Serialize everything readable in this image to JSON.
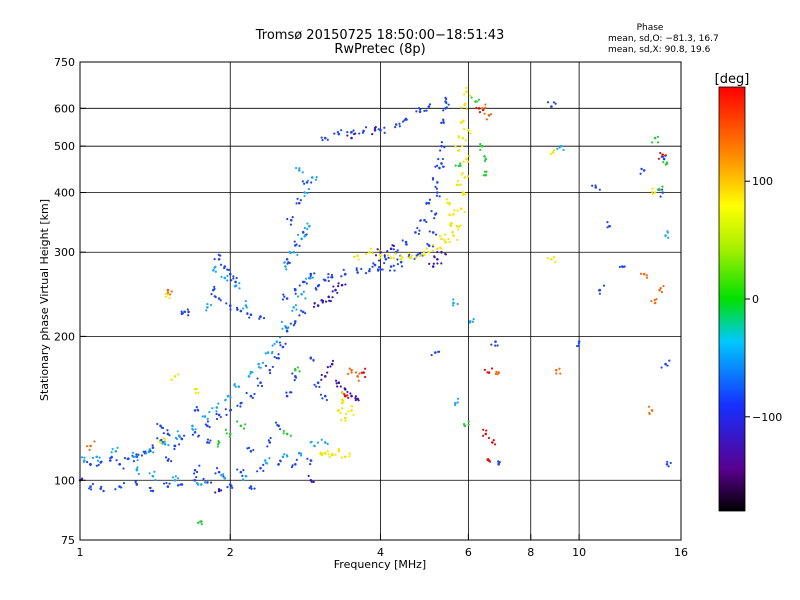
{
  "chart_data": {
    "type": "scatter",
    "title_line1": "Tromsø 20150725 18:50:00−18:51:43",
    "title_line2": "RwPretec (8p)",
    "xlabel": "Frequency [MHz]",
    "ylabel": "Stationary phase Virtual Height [km]",
    "x_scale": "log",
    "y_scale": "log",
    "xlim": [
      1,
      16
    ],
    "ylim": [
      75,
      750
    ],
    "x_ticks": [
      1,
      2,
      4,
      6,
      8,
      10,
      16
    ],
    "x_tick_labels": [
      "1",
      "2",
      "4",
      "6",
      "8",
      "10",
      "16"
    ],
    "x_gridlines": [
      2,
      4,
      6,
      8,
      10
    ],
    "y_ticks": [
      75,
      100,
      200,
      300,
      400,
      500,
      600,
      750
    ],
    "y_tick_labels": [
      "75",
      "100",
      "200",
      "300",
      "400",
      "500",
      "600",
      "750"
    ],
    "y_gridlines": [
      100,
      200,
      300,
      400,
      500,
      600
    ],
    "grid": true,
    "stats": {
      "heading": "Phase",
      "line_o": "mean, sd,O: −81.3, 16.7",
      "line_x": "mean, sd,X:  90.8, 19.6"
    },
    "colorbar": {
      "label": "[deg]",
      "range": [
        -180,
        180
      ],
      "ticks": [
        100,
        0,
        -100
      ],
      "tick_labels": [
        "100",
        "0",
        "−100"
      ],
      "colormap": "rainbow (black-purple-blue-cyan-green-yellow-red)"
    },
    "series": [
      {
        "phase": -100,
        "color": "#1f45e8",
        "points": [
          [
            1.05,
            108
          ],
          [
            1.1,
            109
          ],
          [
            1.15,
            110
          ],
          [
            1.2,
            108
          ],
          [
            1.25,
            111
          ],
          [
            1.3,
            112
          ],
          [
            1.35,
            114
          ],
          [
            1.4,
            117
          ],
          [
            1.45,
            121
          ],
          [
            1.5,
            125
          ],
          [
            1.55,
            118
          ],
          [
            1.6,
            122
          ],
          [
            1.7,
            126
          ],
          [
            1.8,
            130
          ],
          [
            1.9,
            137
          ],
          [
            2.0,
            140
          ],
          [
            2.1,
            145
          ],
          [
            2.2,
            150
          ],
          [
            2.3,
            160
          ],
          [
            2.4,
            170
          ],
          [
            2.5,
            180
          ],
          [
            2.55,
            190
          ],
          [
            2.6,
            205
          ],
          [
            2.7,
            215
          ],
          [
            2.8,
            225
          ],
          [
            2.6,
            240
          ],
          [
            2.7,
            250
          ],
          [
            2.8,
            260
          ],
          [
            2.9,
            270
          ],
          [
            2.6,
            290
          ],
          [
            2.7,
            310
          ],
          [
            2.8,
            330
          ],
          [
            2.65,
            350
          ],
          [
            2.75,
            380
          ],
          [
            2.85,
            420
          ],
          [
            3.0,
            255
          ],
          [
            3.1,
            262
          ],
          [
            3.2,
            266
          ],
          [
            3.4,
            270
          ],
          [
            3.6,
            272
          ],
          [
            3.8,
            274
          ],
          [
            4.0,
            276
          ],
          [
            4.2,
            280
          ],
          [
            4.4,
            286
          ],
          [
            4.6,
            292
          ],
          [
            4.8,
            298
          ],
          [
            5.0,
            310
          ],
          [
            5.1,
            330
          ],
          [
            5.15,
            360
          ],
          [
            5.2,
            400
          ],
          [
            5.25,
            450
          ],
          [
            5.3,
            500
          ],
          [
            5.35,
            560
          ],
          [
            5.4,
            620
          ],
          [
            1.9,
            290
          ],
          [
            1.95,
            280
          ],
          [
            2.0,
            270
          ],
          [
            2.05,
            260
          ],
          [
            1.85,
            250
          ],
          [
            1.9,
            240
          ],
          [
            2.0,
            232
          ],
          [
            2.1,
            226
          ],
          [
            2.2,
            222
          ],
          [
            2.3,
            220
          ],
          [
            1.6,
            223
          ],
          [
            1.65,
            225
          ],
          [
            3.1,
            520
          ],
          [
            3.3,
            530
          ],
          [
            3.5,
            535
          ],
          [
            3.7,
            538
          ],
          [
            4.0,
            540
          ],
          [
            4.3,
            555
          ],
          [
            4.5,
            570
          ],
          [
            4.8,
            590
          ],
          [
            5.0,
            605
          ],
          [
            5.4,
            600
          ],
          [
            5.3,
            460
          ],
          [
            5.2,
            420
          ],
          [
            5.0,
            380
          ],
          [
            4.9,
            350
          ],
          [
            4.7,
            330
          ],
          [
            4.5,
            315
          ],
          [
            4.3,
            300
          ],
          [
            4.1,
            290
          ],
          [
            3.9,
            282
          ],
          [
            1.05,
            97
          ],
          [
            1.1,
            96
          ],
          [
            1.2,
            97
          ],
          [
            1.3,
            98
          ],
          [
            1.4,
            95
          ],
          [
            1.5,
            97
          ],
          [
            1.6,
            98
          ],
          [
            1.7,
            100
          ],
          [
            1.8,
            99
          ],
          [
            2.0,
            98
          ],
          [
            2.2,
            97
          ],
          [
            1.7,
            105
          ],
          [
            1.9,
            104
          ],
          [
            2.1,
            104
          ],
          [
            2.3,
            106
          ],
          [
            2.5,
            108
          ],
          [
            2.7,
            108
          ],
          [
            2.9,
            110
          ],
          [
            2.2,
            115
          ],
          [
            2.4,
            120
          ],
          [
            2.5,
            130
          ],
          [
            2.6,
            150
          ],
          [
            2.7,
            165
          ],
          [
            2.9,
            180
          ],
          [
            3.0,
            160
          ],
          [
            3.1,
            150
          ],
          [
            1.5,
            110
          ],
          [
            1.45,
            130
          ],
          [
            1.7,
            140
          ],
          [
            1.8,
            120
          ],
          [
            5.15,
            185
          ],
          [
            6.9,
            108
          ],
          [
            6.8,
            195
          ],
          [
            8.8,
            605
          ],
          [
            10.8,
            410
          ],
          [
            11.5,
            340
          ],
          [
            12.2,
            280
          ],
          [
            14.8,
            470
          ],
          [
            14.7,
            400
          ],
          [
            10.0,
            195
          ],
          [
            14.9,
            175
          ],
          [
            15.0,
            108
          ],
          [
            13.5,
            445
          ],
          [
            11.0,
            250
          ]
        ]
      },
      {
        "phase": -60,
        "color": "#1aa6f0",
        "points": [
          [
            1.02,
            110
          ],
          [
            1.08,
            112
          ],
          [
            1.18,
            115
          ],
          [
            1.28,
            112
          ],
          [
            1.38,
            116
          ],
          [
            1.48,
            119
          ],
          [
            1.58,
            124
          ],
          [
            1.68,
            130
          ],
          [
            1.78,
            136
          ],
          [
            1.88,
            142
          ],
          [
            1.98,
            150
          ],
          [
            2.08,
            157
          ],
          [
            2.18,
            165
          ],
          [
            2.28,
            175
          ],
          [
            2.38,
            185
          ],
          [
            2.48,
            195
          ],
          [
            2.58,
            210
          ],
          [
            2.68,
            230
          ],
          [
            2.78,
            245
          ],
          [
            2.88,
            265
          ],
          [
            2.58,
            280
          ],
          [
            2.68,
            300
          ],
          [
            2.78,
            320
          ],
          [
            2.88,
            340
          ],
          [
            2.82,
            400
          ],
          [
            2.92,
            430
          ],
          [
            2.75,
            445
          ],
          [
            1.85,
            275
          ],
          [
            1.95,
            265
          ],
          [
            2.05,
            255
          ],
          [
            1.8,
            230
          ],
          [
            2.15,
            232
          ],
          [
            1.55,
            100
          ],
          [
            1.75,
            98
          ],
          [
            1.95,
            101
          ],
          [
            2.15,
            102
          ],
          [
            2.35,
            110
          ],
          [
            2.55,
            112
          ],
          [
            2.75,
            114
          ],
          [
            2.95,
            118
          ],
          [
            3.1,
            120
          ],
          [
            1.4,
            102
          ],
          [
            1.3,
            105
          ],
          [
            5.6,
            235
          ],
          [
            5.65,
            145
          ],
          [
            6.05,
            215
          ],
          [
            9.2,
            500
          ],
          [
            14.9,
            325
          ]
        ]
      },
      {
        "phase": -130,
        "color": "#3a18b0",
        "points": [
          [
            3.0,
            232
          ],
          [
            3.05,
            238
          ],
          [
            3.15,
            242
          ],
          [
            3.25,
            250
          ],
          [
            3.35,
            256
          ],
          [
            3.2,
            175
          ],
          [
            3.3,
            160
          ],
          [
            3.4,
            155
          ],
          [
            3.5,
            150
          ],
          [
            3.6,
            148
          ],
          [
            3.1,
            165
          ],
          [
            5.1,
            280
          ],
          [
            5.2,
            290
          ],
          [
            5.3,
            300
          ],
          [
            4.2,
            305
          ],
          [
            4.0,
            300
          ],
          [
            3.5,
            520
          ],
          [
            3.9,
            540
          ],
          [
            1.0,
            100
          ],
          [
            1.9,
            95
          ],
          [
            2.9,
            100
          ]
        ]
      },
      {
        "phase": 0,
        "color": "#22cc33",
        "points": [
          [
            1.9,
            120
          ],
          [
            2.0,
            125
          ],
          [
            2.1,
            130
          ],
          [
            5.9,
            130
          ],
          [
            6.2,
            620
          ],
          [
            6.4,
            500
          ],
          [
            6.5,
            470
          ],
          [
            5.75,
            455
          ],
          [
            14.5,
            405
          ],
          [
            14.2,
            520
          ],
          [
            15.0,
            460
          ],
          [
            1.75,
            82
          ],
          [
            2.6,
            125
          ],
          [
            2.7,
            170
          ],
          [
            6.5,
            435
          ]
        ]
      },
      {
        "phase": 100,
        "color": "#f2e600",
        "points": [
          [
            3.05,
            113
          ],
          [
            3.1,
            114
          ],
          [
            3.2,
            113
          ],
          [
            3.3,
            115
          ],
          [
            3.4,
            112
          ],
          [
            3.3,
            140
          ],
          [
            3.35,
            145
          ],
          [
            3.4,
            150
          ],
          [
            3.5,
            140
          ],
          [
            3.4,
            135
          ],
          [
            3.6,
            295
          ],
          [
            3.8,
            300
          ],
          [
            4.0,
            296
          ],
          [
            4.2,
            292
          ],
          [
            4.4,
            290
          ],
          [
            4.6,
            292
          ],
          [
            4.8,
            295
          ],
          [
            5.0,
            300
          ],
          [
            5.2,
            305
          ],
          [
            5.4,
            315
          ],
          [
            5.6,
            325
          ],
          [
            5.7,
            340
          ],
          [
            5.8,
            370
          ],
          [
            5.85,
            400
          ],
          [
            5.9,
            430
          ],
          [
            5.95,
            470
          ],
          [
            5.85,
            520
          ],
          [
            5.8,
            560
          ],
          [
            5.9,
            610
          ],
          [
            5.95,
            650
          ],
          [
            5.6,
            360
          ],
          [
            5.5,
            380
          ],
          [
            5.3,
            320
          ],
          [
            5.55,
            345
          ],
          [
            5.7,
            415
          ],
          [
            5.75,
            490
          ],
          [
            6.0,
            540
          ],
          [
            1.45,
            120
          ],
          [
            1.5,
            245
          ],
          [
            1.7,
            155
          ],
          [
            1.55,
            165
          ],
          [
            8.9,
            490
          ],
          [
            8.8,
            290
          ],
          [
            14.2,
            400
          ]
        ]
      },
      {
        "phase": 150,
        "color": "#f06a10",
        "points": [
          [
            1.05,
            118
          ],
          [
            1.5,
            250
          ],
          [
            3.5,
            170
          ],
          [
            3.6,
            165
          ],
          [
            6.4,
            600
          ],
          [
            6.6,
            580
          ],
          [
            14.0,
            140
          ],
          [
            14.2,
            235
          ],
          [
            13.5,
            270
          ],
          [
            14.5,
            250
          ],
          [
            6.9,
            168
          ],
          [
            9.0,
            170
          ]
        ]
      },
      {
        "phase": 175,
        "color": "#e01010",
        "points": [
          [
            6.3,
            600
          ],
          [
            6.6,
            168
          ],
          [
            6.7,
            120
          ],
          [
            6.5,
            125
          ],
          [
            6.6,
            110
          ],
          [
            3.7,
            168
          ],
          [
            3.4,
            150
          ],
          [
            14.7,
            480
          ]
        ]
      }
    ]
  }
}
